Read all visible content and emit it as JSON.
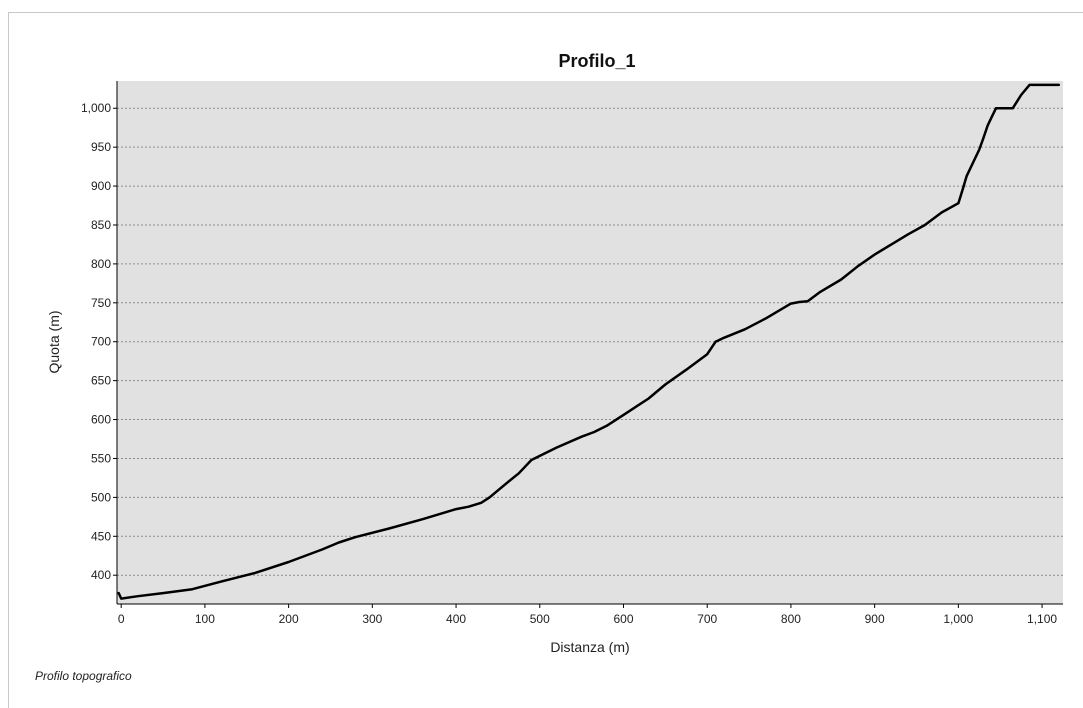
{
  "footer": {
    "note": "Profilo topografico"
  },
  "colors": {
    "plot_background": "#e1e1e1",
    "line": "#000000",
    "grid": "#8c8c8c",
    "page": "#ffffff"
  },
  "chart_data": {
    "type": "line",
    "title": "Profilo_1",
    "xlabel": "Distanza (m)",
    "ylabel": "Quota (m)",
    "xlim": [
      -5,
      1125
    ],
    "ylim": [
      363,
      1035
    ],
    "xticks": [
      0,
      100,
      200,
      300,
      400,
      500,
      600,
      700,
      800,
      900,
      1000,
      1100
    ],
    "xtick_labels": [
      "0",
      "100",
      "200",
      "300",
      "400",
      "500",
      "600",
      "700",
      "800",
      "900",
      "1,000",
      "1,100"
    ],
    "yticks": [
      400,
      450,
      500,
      550,
      600,
      650,
      700,
      750,
      800,
      850,
      900,
      950,
      1000
    ],
    "ytick_labels": [
      "400",
      "450",
      "500",
      "550",
      "600",
      "650",
      "700",
      "750",
      "800",
      "850",
      "900",
      "950",
      "1,000"
    ],
    "grid": {
      "horizontal": true,
      "vertical": false,
      "style": "dotted"
    },
    "legend": "none",
    "series": [
      {
        "x": [
          -3,
          0,
          20,
          50,
          85,
          120,
          160,
          200,
          240,
          260,
          280,
          320,
          360,
          400,
          415,
          430,
          440,
          460,
          475,
          490,
          520,
          550,
          565,
          580,
          600,
          630,
          650,
          675,
          700,
          710,
          720,
          745,
          770,
          800,
          810,
          820,
          835,
          860,
          880,
          900,
          920,
          940,
          960,
          980,
          1000,
          1005,
          1010,
          1025,
          1030,
          1035,
          1040,
          1045,
          1050,
          1065,
          1075,
          1085,
          1095,
          1110,
          1120
        ],
        "y": [
          377,
          370,
          373,
          377,
          382,
          392,
          403,
          417,
          433,
          442,
          449,
          460,
          472,
          485,
          488,
          493,
          500,
          518,
          531,
          548,
          564,
          578,
          584,
          592,
          606,
          627,
          645,
          664,
          684,
          700,
          705,
          716,
          730,
          749,
          751,
          752,
          764,
          780,
          797,
          812,
          825,
          838,
          850,
          866,
          878,
          895,
          913,
          947,
          962,
          978,
          989,
          1000,
          1000,
          1000,
          1017,
          1030,
          1030,
          1030,
          1030
        ]
      }
    ]
  }
}
